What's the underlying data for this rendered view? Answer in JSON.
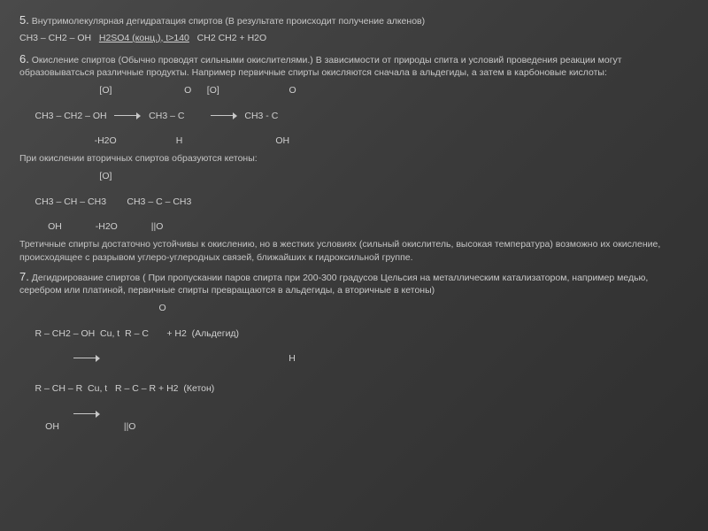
{
  "background": {
    "gradient_from": "#4a4a4a",
    "gradient_mid": "#3a3a3a",
    "gradient_to": "#2e2e2e"
  },
  "text_color": "#d8d8d8",
  "font_family": "Arial",
  "base_fontsize_pt": 8,
  "sec5": {
    "num": "5.",
    "title": "Внутримолекулярная дегидратация спиртов (В результате происходит получение алкенов)",
    "eq_left": "CH3 – CH2 – OH",
    "eq_cond": "H2SO4 (конц.), t>140",
    "eq_right": "CH2 CH2 + H2O"
  },
  "sec6": {
    "num": "6.",
    "title": "Окисление спиртов (Обычно проводят сильными окислителями.) В зависимости от природы спита и условий проведения реакции могут образовыватсься различные продукты. Например первичные спирты окисляются сначала в альдегиды, а затем в карбоновые кислоты:",
    "row1": "                               [O]                            O      [O]                           O",
    "row2_a": "CH3 – CH2 – OH",
    "row2_b": "CH3 – C",
    "row2_c": "CH3 - C",
    "row3": "                             -H2O                       H                                    OH",
    "sub1": "При окислении вторичных спиртов образуются кетоны:",
    "row4": "                               [O]",
    "row5_a": "CH3 – CH – CH3",
    "row5_b": "CH3 – C – CH3",
    "row6": "           OH             -H2O             ||O",
    "sub2": "Третичные спирты достаточно устойчивы к окислению, но в жестких условиях (сильный  окислитель, высокая температура) возможно их окисление, происходящее с разрывом углеро-углеродных связей, ближайших к гидроксильной группе."
  },
  "sec7": {
    "num": "7.",
    "title": "Дегидрирование спиртов ( При пропускании паров спирта при 200-300 градусов Цельсия на металлическим катализатором, например медью, серебром или платиной, первичные спирты превращаются в альдегиды, а вторичные в кетоны)",
    "rowA": "                                                      O",
    "rowB_a": "R – CH2 – OH",
    "rowB_b": "Cu, t",
    "rowB_c": "R – C",
    "rowB_d": "+ H2",
    "rowB_e": "(Альдегид)",
    "rowC": "                                                      H",
    "rowD_a": "R – CH – R",
    "rowD_b": "Cu, t",
    "rowD_c": "R – C – R + H2",
    "rowD_d": "(Кетон)",
    "rowE": "          OH                         ||O"
  }
}
